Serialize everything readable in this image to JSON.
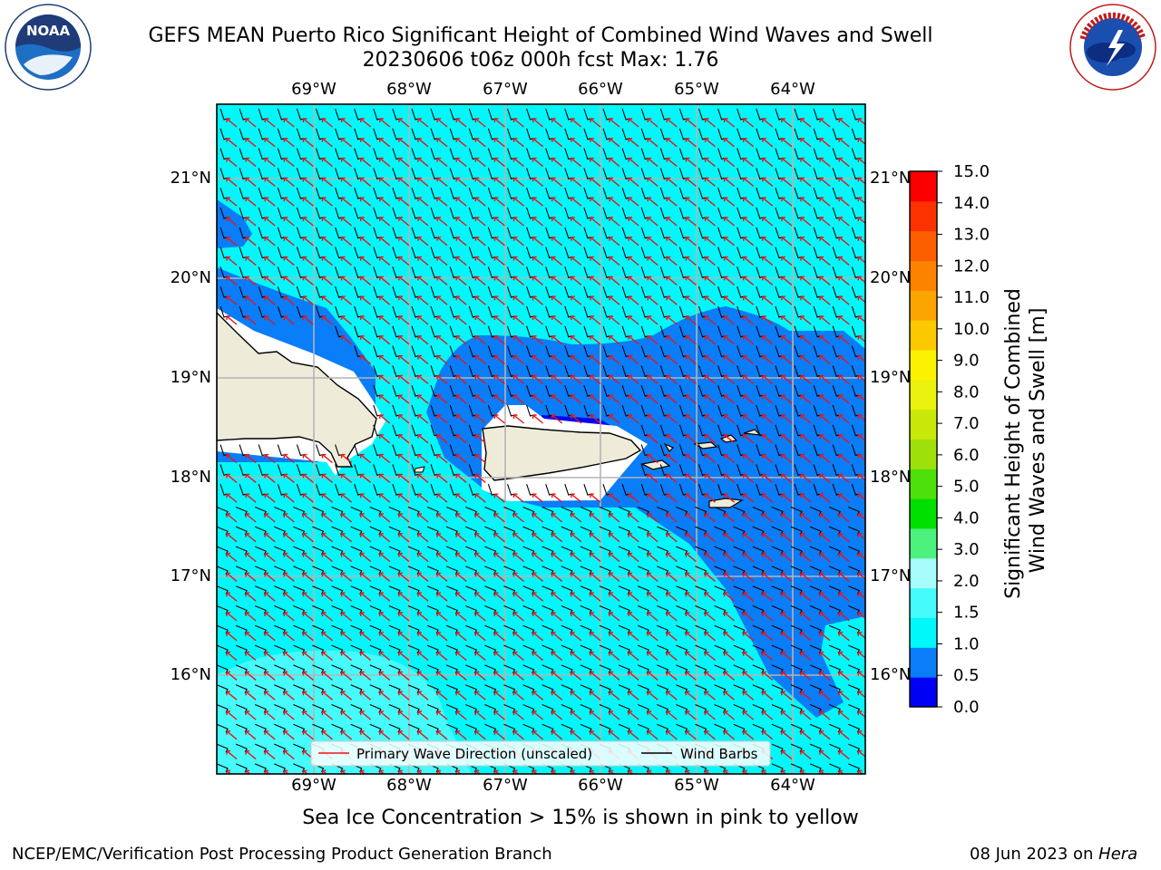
{
  "header": {
    "title_line1": "GEFS MEAN Puerto Rico Significant Height of Combined Wind Waves and Swell",
    "title_line2": "20230606 t06z 000h fcst   Max: 1.76"
  },
  "logos": {
    "left_name": "NOAA",
    "right_name": "NATIONAL WEATHER SERVICE"
  },
  "map": {
    "lon_labels": [
      "69°W",
      "68°W",
      "67°W",
      "66°W",
      "65°W",
      "64°W"
    ],
    "lat_labels": [
      "21°N",
      "20°N",
      "19°N",
      "18°N",
      "17°N",
      "16°N"
    ],
    "legend": {
      "primary_wave": "Primary Wave Direction (unscaled)",
      "wind_barbs": "Wind Barbs"
    },
    "colors": {
      "primary_wave": "#e8151a",
      "wind_barb": "#000000",
      "land": "#eeebd9"
    }
  },
  "colorbar": {
    "label_line1": "Significant Height of Combined",
    "label_line2": "Wind Waves and Swell [m]",
    "ticks": [
      "0.0",
      "0.5",
      "1.0",
      "1.5",
      "2.0",
      "3.0",
      "4.0",
      "5.0",
      "6.0",
      "7.0",
      "8.0",
      "9.0",
      "10.0",
      "11.0",
      "12.0",
      "13.0",
      "14.0",
      "15.0"
    ],
    "colors": [
      "#0000f4",
      "#0a7df8",
      "#00f8fa",
      "#45fbfb",
      "#a7fdfb",
      "#4cf27c",
      "#00e000",
      "#4ee00a",
      "#9ee00a",
      "#c8e80a",
      "#eaf10d",
      "#fcf200",
      "#fcc800",
      "#fca400",
      "#fc8200",
      "#fc5e00",
      "#fc3200",
      "#fc0000"
    ]
  },
  "chart_data": {
    "type": "heatmap",
    "title": "GEFS MEAN Puerto Rico Significant Height of Combined Wind Waves and Swell",
    "subtitle": "20230606 t06z 000h fcst   Max: 1.76",
    "variable_label": "Significant Height of Combined Wind Waves and Swell [m]",
    "max_value": 1.76,
    "levels": [
      0.0,
      0.5,
      1.0,
      1.5,
      2.0,
      3.0,
      4.0,
      5.0,
      6.0,
      7.0,
      8.0,
      9.0,
      10.0,
      11.0,
      12.0,
      13.0,
      14.0,
      15.0
    ],
    "lon_range": [
      -69.9,
      -63.2
    ],
    "lat_range": [
      15.1,
      21.8
    ],
    "grid": true
  },
  "footer": {
    "note": "Sea Ice Concentration > 15% is shown in pink to yellow",
    "left": "NCEP/EMC/Verification Post Processing Product Generation Branch",
    "right_date": "08 Jun 2023 on",
    "right_host": "Hera"
  }
}
